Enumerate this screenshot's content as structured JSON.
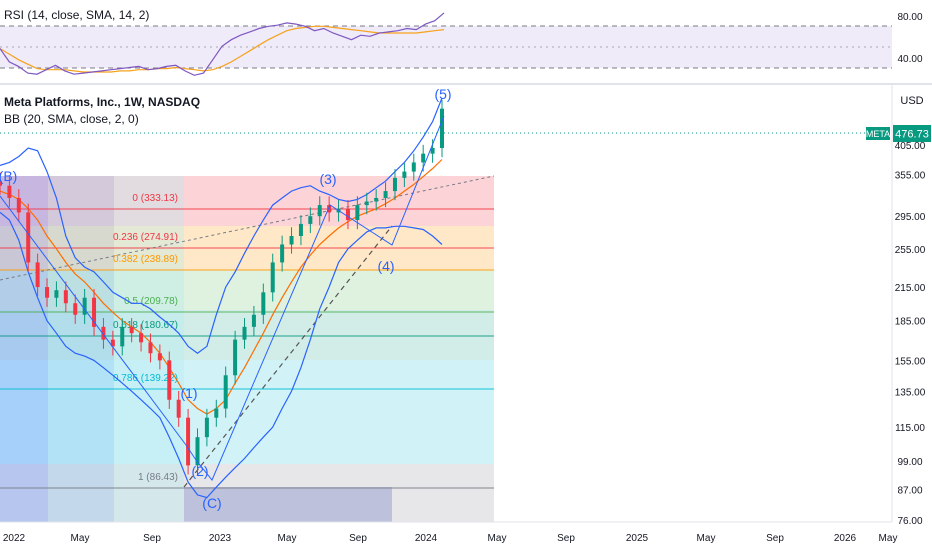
{
  "header": {
    "rsi_label": "RSI (14, close, SMA, 14, 2)",
    "title": "Meta Platforms, Inc., 1W, NASDAQ",
    "bb_label": "BB (20, SMA, close, 2, 0)",
    "currency": "USD"
  },
  "chart_data": [
    {
      "type": "line",
      "title": "RSI (14, close, SMA, 14, 2)",
      "ylim": [
        20,
        90
      ],
      "yticks": [
        80,
        40
      ],
      "overbought": 70,
      "oversold": 30,
      "series": [
        {
          "name": "RSI",
          "color": "#7e57c2",
          "values": [
            50,
            38,
            34,
            28,
            27,
            31,
            35,
            30,
            27,
            28,
            29,
            30,
            31,
            32,
            33,
            34,
            31,
            32,
            34,
            35,
            30,
            26,
            28,
            40,
            52,
            58,
            62,
            65,
            68,
            70,
            71,
            73,
            72,
            70,
            66,
            68,
            64,
            61,
            58,
            62,
            61,
            64,
            65,
            66,
            68,
            67,
            72,
            75,
            82
          ]
        },
        {
          "name": "RSI-based MA",
          "color": "#f7a21b",
          "values": [
            50,
            45,
            40,
            36,
            32,
            31,
            31,
            31,
            30,
            29,
            29,
            29,
            29,
            30,
            30,
            31,
            31,
            32,
            32,
            33,
            32,
            31,
            30,
            31,
            34,
            38,
            43,
            48,
            53,
            58,
            62,
            66,
            68,
            69,
            70,
            70,
            69,
            68,
            67,
            66,
            65,
            64,
            64,
            64,
            64,
            64,
            65,
            66,
            67
          ]
        }
      ]
    },
    {
      "type": "line",
      "title": "Meta Platforms, Inc., 1W, NASDAQ",
      "ylim": [
        76,
        500
      ],
      "yscale": "log",
      "yticks": [
        405,
        355,
        295,
        255,
        215,
        185,
        155,
        135,
        115,
        99,
        87,
        76
      ],
      "x_labels": [
        "2022",
        "May",
        "Sep",
        "2023",
        "May",
        "Sep",
        "2024",
        "May",
        "Sep",
        "2025",
        "May",
        "Sep",
        "2026",
        "May"
      ],
      "last_price": {
        "symbol": "META",
        "value": "476.73"
      },
      "fib_levels": [
        {
          "ratio": "0",
          "value": 333.13,
          "label": "0 (333.13)",
          "color": "#f23645"
        },
        {
          "ratio": "0.236",
          "value": 274.91,
          "label": "0.236 (274.91)",
          "color": "#f23645"
        },
        {
          "ratio": "0.382",
          "value": 238.89,
          "label": "0.382 (238.89)",
          "color": "#ff9800"
        },
        {
          "ratio": "0.5",
          "value": 209.78,
          "label": "0.5 (209.78)",
          "color": "#4caf50"
        },
        {
          "ratio": "0.618",
          "value": 180.67,
          "label": "0.618 (180.67)",
          "color": "#089981"
        },
        {
          "ratio": "0.786",
          "value": 139.22,
          "label": "0.786 (139.22)",
          "color": "#00bcd4"
        },
        {
          "ratio": "1",
          "value": 86.43,
          "label": "1 (86.43)",
          "color": "#787b86"
        }
      ],
      "wave_labels": [
        "(B)",
        "(1)",
        "(2)",
        "(C)",
        "(3)",
        "(4)",
        "(5)"
      ],
      "series": [
        {
          "name": "Close",
          "color": "#089981",
          "values": [
            338,
            320,
            300,
            240,
            215,
            205,
            212,
            200,
            190,
            205,
            180,
            170,
            165,
            180,
            175,
            168,
            160,
            155,
            130,
            120,
            97,
            110,
            120,
            125,
            145,
            170,
            180,
            190,
            210,
            240,
            260,
            270,
            285,
            295,
            310,
            300,
            305,
            290,
            310,
            315,
            320,
            330,
            350,
            360,
            375,
            390,
            400,
            476.73
          ]
        },
        {
          "name": "Basis",
          "color": "#ff6d00",
          "values": [
            330,
            325,
            318,
            305,
            290,
            270,
            255,
            240,
            228,
            220,
            210,
            200,
            192,
            185,
            180,
            175,
            168,
            160,
            150,
            140,
            130,
            125,
            122,
            125,
            130,
            140,
            150,
            162,
            175,
            190,
            205,
            220,
            235,
            248,
            260,
            270,
            280,
            288,
            295,
            300,
            305,
            312,
            320,
            330,
            340,
            352,
            365,
            380
          ]
        },
        {
          "name": "Upper",
          "color": "#2962ff",
          "values": [
            370,
            375,
            385,
            400,
            395,
            360,
            320,
            270,
            245,
            235,
            230,
            220,
            210,
            205,
            200,
            200,
            195,
            188,
            182,
            175,
            165,
            160,
            165,
            190,
            215,
            230,
            250,
            270,
            290,
            310,
            320,
            330,
            335,
            338,
            330,
            325,
            318,
            315,
            318,
            325,
            335,
            345,
            360,
            375,
            395,
            420,
            450,
            500
          ]
        },
        {
          "name": "Lower",
          "color": "#2962ff",
          "values": [
            300,
            290,
            265,
            230,
            205,
            185,
            175,
            165,
            160,
            158,
            155,
            150,
            145,
            140,
            135,
            130,
            125,
            120,
            110,
            100,
            90,
            85,
            84,
            88,
            92,
            96,
            100,
            105,
            110,
            115,
            125,
            135,
            150,
            170,
            195,
            215,
            240,
            255,
            265,
            275,
            280,
            280,
            282,
            282,
            280,
            278,
            270,
            260
          ]
        }
      ]
    }
  ]
}
